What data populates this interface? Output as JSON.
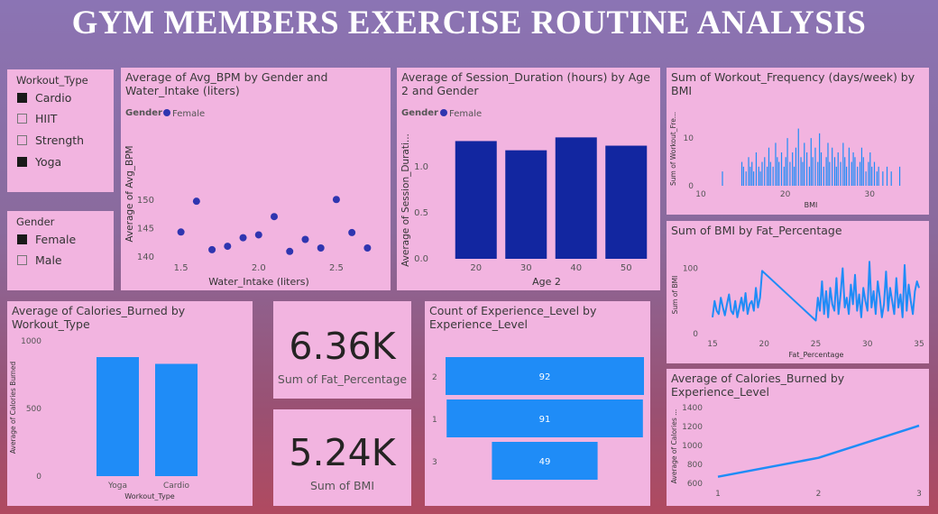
{
  "page": {
    "title": "GYM MEMBERS EXERCISE ROUTINE ANALYSIS"
  },
  "colors": {
    "dark_blue": "#1226a0",
    "bright_blue": "#1f8cf7",
    "dot": "#2f35b0"
  },
  "slicers": {
    "workout": {
      "title": "Workout_Type",
      "items": [
        {
          "label": "Cardio",
          "checked": true
        },
        {
          "label": "HIIT",
          "checked": false
        },
        {
          "label": "Strength",
          "checked": false
        },
        {
          "label": "Yoga",
          "checked": true
        }
      ]
    },
    "gender": {
      "title": "Gender",
      "items": [
        {
          "label": "Female",
          "checked": true
        },
        {
          "label": "Male",
          "checked": false
        }
      ]
    }
  },
  "kpis": {
    "fat": {
      "value": "6.36K",
      "label": "Sum of Fat_Percentage"
    },
    "bmi": {
      "value": "5.24K",
      "label": "Sum of BMI"
    }
  },
  "chart_data": [
    {
      "id": "bpm_water",
      "type": "scatter",
      "title": "Average of Avg_BPM by Gender and Water_Intake (liters)",
      "legend_title": "Gender",
      "legend_entries": [
        "Female"
      ],
      "xlabel": "Water_Intake (liters)",
      "ylabel": "Average of Avg_BPM",
      "x_ticks": [
        "1.5",
        "2.0",
        "2.5"
      ],
      "y_ticks": [
        "140",
        "145",
        "150"
      ],
      "xlim": [
        1.45,
        2.75
      ],
      "ylim": [
        139.7,
        150.3
      ],
      "x": [
        1.6,
        1.5,
        1.7,
        1.8,
        1.9,
        2.0,
        2.1,
        2.2,
        2.3,
        2.4,
        2.5,
        2.6,
        2.7
      ],
      "y": [
        149.8,
        144.4,
        141.3,
        141.9,
        143.4,
        143.9,
        147.1,
        141.0,
        143.1,
        141.6,
        150.1,
        144.3,
        141.6
      ]
    },
    {
      "id": "session_age",
      "type": "bar",
      "title": "Average of Session_Duration (hours) by Age 2 and Gender",
      "legend_title": "Gender",
      "legend_entries": [
        "Female"
      ],
      "xlabel": "Age 2",
      "ylabel": "Average of Session_Durati...",
      "categories": [
        "20",
        "30",
        "40",
        "50"
      ],
      "values": [
        1.28,
        1.18,
        1.32,
        1.23
      ],
      "y_ticks": [
        "0.0",
        "0.5",
        "1.0"
      ],
      "ylim": [
        0,
        1.5
      ]
    },
    {
      "id": "freq_bmi",
      "type": "bar",
      "title": "Sum of Workout_Frequency (days/week) by BMI",
      "xlabel": "BMI",
      "ylabel": "Sum of Workout_Fre...",
      "x_ticks": [
        "10",
        "20",
        "30"
      ],
      "y_ticks": [
        "0",
        "10"
      ],
      "xlim": [
        10,
        35
      ],
      "ylim": [
        0,
        14
      ],
      "x": [
        12.5,
        14.8,
        15.0,
        15.3,
        15.6,
        15.8,
        16.0,
        16.2,
        16.5,
        16.8,
        17.0,
        17.2,
        17.5,
        17.8,
        18.0,
        18.2,
        18.5,
        18.8,
        19.0,
        19.2,
        19.5,
        19.8,
        20.0,
        20.2,
        20.5,
        20.8,
        21.0,
        21.2,
        21.5,
        21.8,
        22.0,
        22.2,
        22.5,
        22.8,
        23.0,
        23.2,
        23.5,
        23.8,
        24.0,
        24.2,
        24.5,
        24.8,
        25.0,
        25.2,
        25.5,
        25.8,
        26.0,
        26.2,
        26.5,
        26.8,
        27.0,
        27.2,
        27.5,
        27.8,
        28.0,
        28.2,
        28.5,
        28.8,
        29.0,
        29.2,
        29.5,
        29.8,
        30.0,
        30.2,
        30.5,
        30.8,
        31.0,
        31.5,
        32.0,
        32.5,
        33.5
      ],
      "values": [
        3,
        5,
        4,
        3,
        6,
        4,
        5,
        3,
        7,
        4,
        3,
        5,
        6,
        4,
        8,
        5,
        4,
        9,
        6,
        5,
        7,
        4,
        6,
        10,
        5,
        7,
        4,
        8,
        12,
        6,
        5,
        9,
        7,
        4,
        10,
        6,
        8,
        5,
        11,
        7,
        4,
        6,
        9,
        5,
        8,
        6,
        4,
        7,
        5,
        9,
        6,
        4,
        8,
        5,
        7,
        6,
        4,
        5,
        8,
        6,
        3,
        5,
        7,
        4,
        5,
        3,
        4,
        3,
        4,
        3,
        4
      ]
    },
    {
      "id": "bmi_fat",
      "type": "line",
      "title": "Sum of BMI by Fat_Percentage",
      "xlabel": "Fat_Percentage",
      "ylabel": "Sum of BMI",
      "x_ticks": [
        "15",
        "20",
        "25",
        "30",
        "35"
      ],
      "y_ticks": [
        "0",
        "100"
      ],
      "xlim": [
        15,
        35
      ],
      "ylim": [
        0,
        120
      ],
      "x": [
        15.0,
        15.2,
        15.4,
        15.6,
        15.8,
        16.0,
        16.2,
        16.4,
        16.6,
        16.8,
        17.0,
        17.2,
        17.4,
        17.6,
        17.8,
        18.0,
        18.2,
        18.4,
        18.6,
        18.8,
        19.0,
        19.2,
        19.4,
        19.6,
        19.8,
        25.0,
        25.2,
        25.4,
        25.6,
        25.8,
        26.0,
        26.2,
        26.4,
        26.6,
        26.8,
        27.0,
        27.2,
        27.4,
        27.6,
        27.8,
        28.0,
        28.2,
        28.4,
        28.6,
        28.8,
        29.0,
        29.2,
        29.4,
        29.6,
        29.8,
        30.0,
        30.2,
        30.4,
        30.6,
        30.8,
        31.0,
        31.2,
        31.4,
        31.6,
        31.8,
        32.0,
        32.2,
        32.4,
        32.6,
        32.8,
        33.0,
        33.2,
        33.4,
        33.6,
        33.8,
        34.0,
        34.2,
        34.4,
        34.6,
        34.8,
        35.0
      ],
      "values": [
        25,
        50,
        35,
        30,
        55,
        40,
        28,
        45,
        60,
        35,
        30,
        50,
        25,
        40,
        55,
        35,
        62,
        30,
        45,
        50,
        35,
        70,
        40,
        55,
        96,
        20,
        55,
        35,
        80,
        30,
        65,
        25,
        70,
        45,
        35,
        85,
        30,
        60,
        100,
        40,
        55,
        30,
        75,
        45,
        90,
        35,
        60,
        25,
        70,
        50,
        35,
        110,
        40,
        65,
        30,
        80,
        55,
        25,
        45,
        95,
        35,
        70,
        50,
        30,
        85,
        40,
        60,
        25,
        105,
        35,
        75,
        50,
        30,
        65,
        80,
        70
      ]
    },
    {
      "id": "calories_workout",
      "type": "bar",
      "title": "Average of Calories_Burned by Workout_Type",
      "xlabel": "Workout_Type",
      "ylabel": "Average of Calories Burned",
      "categories": [
        "Yoga",
        "Cardio"
      ],
      "values": [
        880,
        830
      ],
      "y_ticks": [
        "0",
        "500",
        "1000"
      ],
      "ylim": [
        0,
        1000
      ]
    },
    {
      "id": "exp_level_count",
      "type": "bar",
      "orientation": "funnel",
      "title": "Count of Experience_Level by Experience_Level",
      "categories": [
        "2",
        "1",
        "3"
      ],
      "values": [
        92,
        91,
        49
      ]
    },
    {
      "id": "calories_exp",
      "type": "line",
      "title": "Average of Calories_Burned by Experience_Level",
      "xlabel": "",
      "ylabel": "Average of Calories ...",
      "x_ticks": [
        "1",
        "2",
        "3"
      ],
      "y_ticks": [
        "600",
        "800",
        "1000",
        "1200",
        "1400"
      ],
      "x": [
        1,
        2,
        3
      ],
      "values": [
        670,
        870,
        1210
      ],
      "ylim": [
        600,
        1400
      ]
    }
  ]
}
